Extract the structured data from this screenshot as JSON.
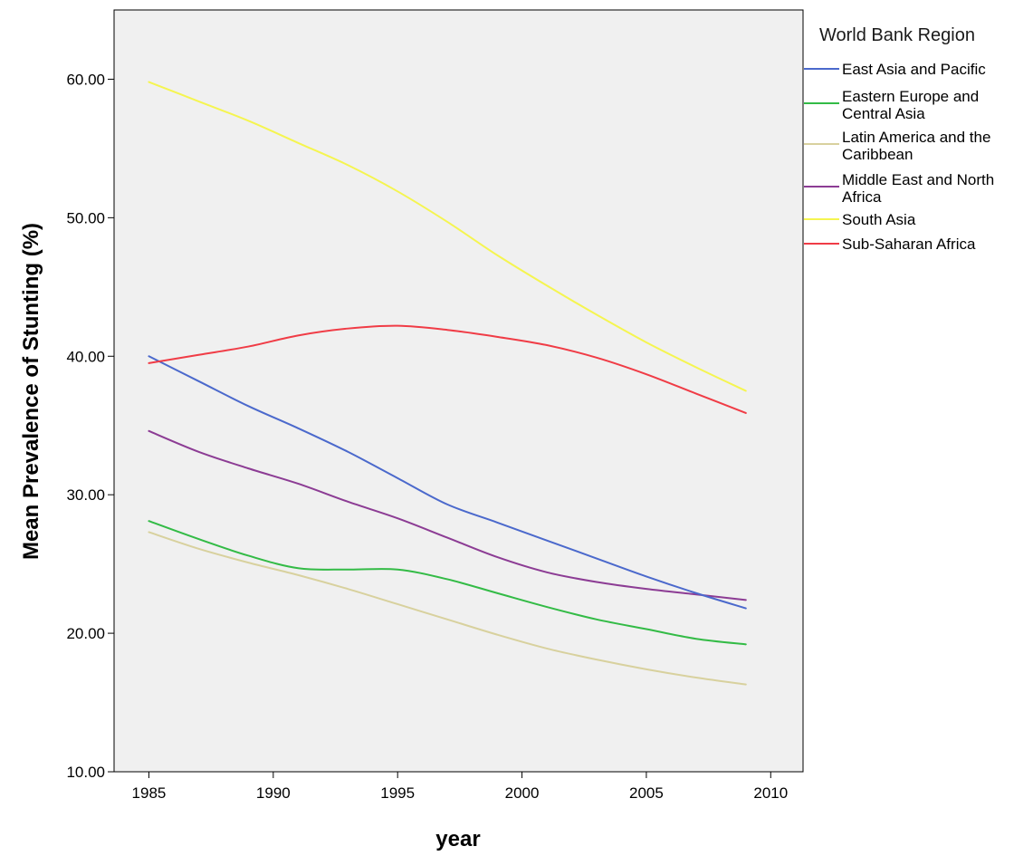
{
  "chart_data": {
    "type": "line",
    "xlabel": "year",
    "ylabel": "Mean Prevalence of Stunting (%)",
    "xlim": [
      1983.6,
      2011.3
    ],
    "ylim": [
      10,
      65
    ],
    "x_ticks": [
      1985,
      1990,
      1995,
      2000,
      2005,
      2010
    ],
    "y_ticks": [
      10,
      20,
      30,
      40,
      50,
      60
    ],
    "y_tick_labels": [
      "10.00",
      "20.00",
      "30.00",
      "40.00",
      "50.00",
      "60.00"
    ],
    "grid": false,
    "plot_background": "#f0f0f0",
    "legend": {
      "title": "World Bank Region",
      "placement": "outside-right"
    },
    "x": [
      1985,
      1987,
      1989,
      1991,
      1993,
      1995,
      1997,
      1999,
      2001,
      2003,
      2005,
      2007,
      2009
    ],
    "series": [
      {
        "name": "East Asia and Pacific",
        "color": "#4b69cc",
        "values": [
          40.0,
          38.2,
          36.4,
          34.8,
          33.1,
          31.2,
          29.3,
          28.0,
          26.7,
          25.4,
          24.1,
          22.9,
          21.8
        ]
      },
      {
        "name": "Eastern Europe and Central Asia",
        "color": "#33bb46",
        "legend_lines": [
          "Eastern Europe and",
          "Central Asia"
        ],
        "values": [
          28.1,
          26.8,
          25.6,
          24.7,
          24.6,
          24.6,
          23.9,
          22.9,
          21.9,
          21.0,
          20.3,
          19.6,
          19.2
        ]
      },
      {
        "name": "Latin America and the Caribbean",
        "color": "#d8d19e",
        "legend_lines": [
          "Latin America and the",
          "Caribbean"
        ],
        "values": [
          27.3,
          26.1,
          25.1,
          24.2,
          23.2,
          22.1,
          21.0,
          19.9,
          18.9,
          18.1,
          17.4,
          16.8,
          16.3
        ]
      },
      {
        "name": "Middle East and North Africa",
        "color": "#8c3c94",
        "legend_lines": [
          "Middle East and North",
          "Africa"
        ],
        "values": [
          34.6,
          33.1,
          31.9,
          30.8,
          29.5,
          28.3,
          26.9,
          25.5,
          24.4,
          23.7,
          23.2,
          22.8,
          22.4
        ]
      },
      {
        "name": "South Asia",
        "color": "#f5f550",
        "values": [
          59.8,
          58.4,
          57.0,
          55.4,
          53.8,
          51.9,
          49.7,
          47.3,
          45.1,
          43.0,
          41.0,
          39.2,
          37.5
        ]
      },
      {
        "name": "Sub-Saharan Africa",
        "color": "#f03c46",
        "values": [
          39.5,
          40.1,
          40.7,
          41.5,
          42.0,
          42.2,
          41.9,
          41.4,
          40.8,
          39.9,
          38.7,
          37.3,
          35.9
        ]
      }
    ]
  }
}
